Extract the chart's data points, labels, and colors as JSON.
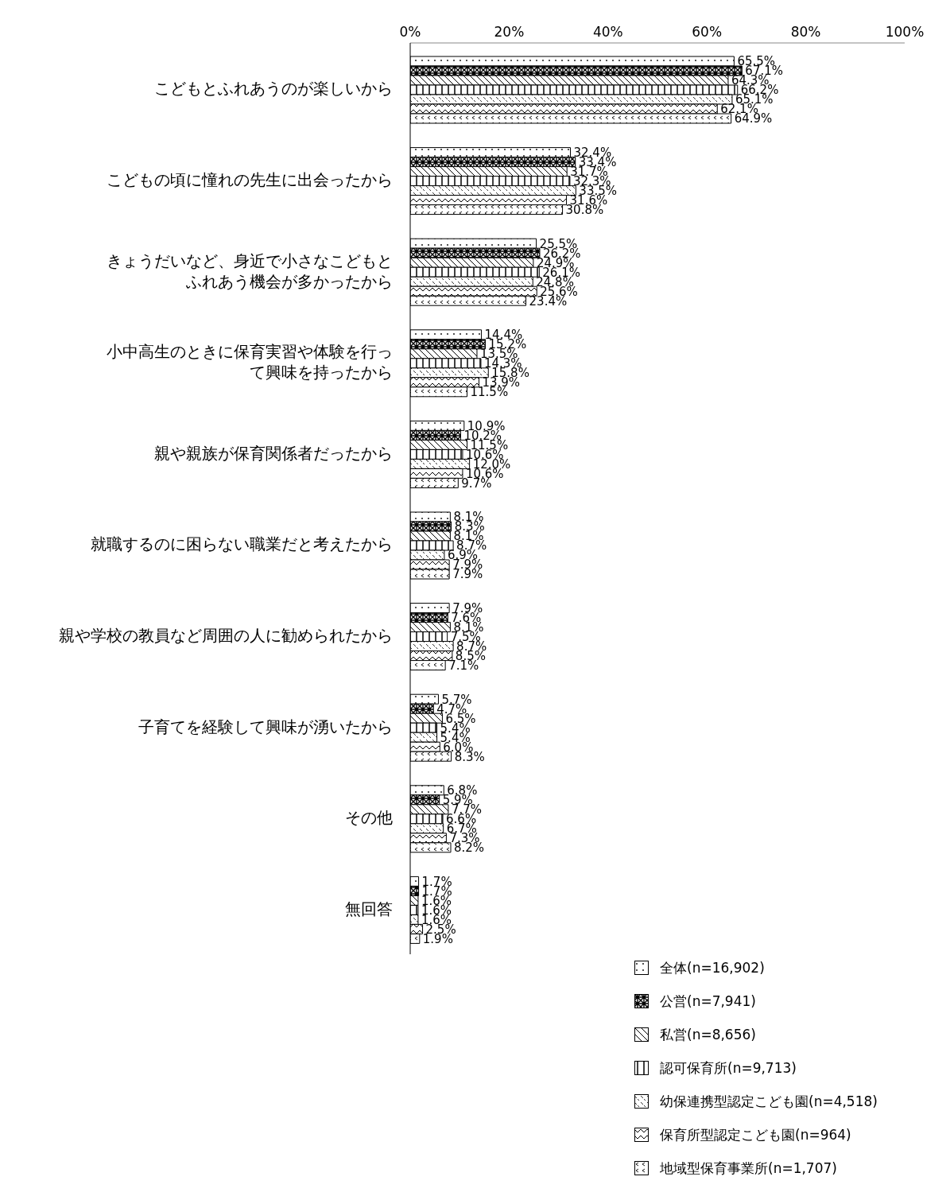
{
  "chart_data": {
    "type": "bar",
    "orientation": "horizontal",
    "legend": "bottom right",
    "grid": false,
    "categories": [
      "こどもとふれあうのが楽しいから",
      "こどもの頃に憧れの先生に出会ったから",
      "きょうだいなど、身近で小さなこどもとふれあう機会が多かったから",
      "小中高生のときに保育実習や体験を行って興味を持ったから",
      "親や親族が保育関係者だったから",
      "就職するのに困らない職業だと考えたから",
      "親や学校の教員など周囲の人に勧められたから",
      "子育てを経験して興味が湧いたから",
      "その他",
      "無回答"
    ],
    "xlim": [
      0,
      100
    ],
    "xticks": [
      {
        "value": 0,
        "label": "0%"
      },
      {
        "value": 20,
        "label": "20%"
      },
      {
        "value": 40,
        "label": "40%"
      },
      {
        "value": 60,
        "label": "60%"
      },
      {
        "value": 80,
        "label": "80%"
      },
      {
        "value": 100,
        "label": "100%"
      }
    ],
    "series": [
      {
        "name": "全体(n=16,902)",
        "color": "#000000",
        "values": [
          65.5,
          32.4,
          25.5,
          14.4,
          10.9,
          8.1,
          7.9,
          5.7,
          6.8,
          1.7
        ],
        "value_labels": [
          "65.5%",
          "32.4%",
          "25.5%",
          "14.4%",
          "10.9%",
          "8.1%",
          "7.9%",
          "5.7%",
          "6.8%",
          "1.7%"
        ]
      },
      {
        "name": "公営(n=7,941)",
        "color": "#000000",
        "values": [
          67.1,
          33.4,
          26.2,
          15.2,
          10.2,
          8.3,
          7.6,
          4.7,
          5.9,
          1.7
        ],
        "value_labels": [
          "67.1%",
          "33.4%",
          "26.2%",
          "15.2%",
          "10.2%",
          "8.3%",
          "7.6%",
          "4.7%",
          "5.9%",
          "1.7%"
        ]
      },
      {
        "name": "私営(n=8,656)",
        "color": "#000000",
        "values": [
          64.3,
          31.7,
          24.9,
          13.5,
          11.5,
          8.1,
          8.1,
          6.5,
          7.7,
          1.6
        ],
        "value_labels": [
          "64.3%",
          "31.7%",
          "24.9%",
          "13.5%",
          "11.5%",
          "8.1%",
          "8.1%",
          "6.5%",
          "7.7%",
          "1.6%"
        ]
      },
      {
        "name": "認可保育所(n=9,713)",
        "color": "#000000",
        "values": [
          66.2,
          32.3,
          26.1,
          14.3,
          10.6,
          8.7,
          7.5,
          5.4,
          6.6,
          1.6
        ],
        "value_labels": [
          "66.2%",
          "32.3%",
          "26.1%",
          "14.3%",
          "10.6%",
          "8.7%",
          "7.5%",
          "5.4%",
          "6.6%",
          "1.6%"
        ]
      },
      {
        "name": "幼保連携型認定こども園(n=4,518)",
        "color": "#000000",
        "values": [
          65.1,
          33.5,
          24.8,
          15.8,
          12.0,
          6.9,
          8.7,
          5.4,
          6.7,
          1.6
        ],
        "value_labels": [
          "65.1%",
          "33.5%",
          "24.8%",
          "15.8%",
          "12.0%",
          "6.9%",
          "8.7%",
          "5.4%",
          "6.7%",
          "1.6%"
        ]
      },
      {
        "name": "保育所型認定こども園(n=964)",
        "color": "#000000",
        "values": [
          62.1,
          31.6,
          25.6,
          13.9,
          10.6,
          7.9,
          8.5,
          6.0,
          7.3,
          2.5
        ],
        "value_labels": [
          "62.1%",
          "31.6%",
          "25.6%",
          "13.9%",
          "10.6%",
          "7.9%",
          "8.5%",
          "6.0%",
          "7.3%",
          "2.5%"
        ]
      },
      {
        "name": "地域型保育事業所(n=1,707)",
        "color": "#000000",
        "values": [
          64.9,
          30.8,
          23.4,
          11.5,
          9.7,
          7.9,
          7.1,
          8.3,
          8.2,
          1.9
        ],
        "value_labels": [
          "64.9%",
          "30.8%",
          "23.4%",
          "11.5%",
          "9.7%",
          "7.9%",
          "7.1%",
          "8.3%",
          "8.2%",
          "1.9%"
        ]
      }
    ]
  }
}
